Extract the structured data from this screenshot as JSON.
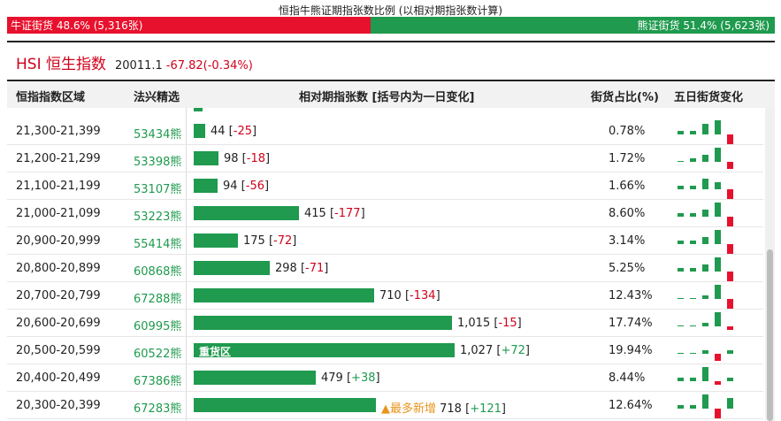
{
  "title": "恒指牛熊证期指张数比例 (以相对期指张数计算)",
  "ratio": {
    "bull_label": "牛证街货 48.6% (5,316张)",
    "bear_label": "熊证街货 51.4% (5,623张)",
    "bull_percent": 48.6,
    "bull_color": "#e8112d",
    "bear_color": "#1f9a4e"
  },
  "index": {
    "name": "HSI 恒生指数",
    "value": "20011.1",
    "change": "-67.82(-0.34%)"
  },
  "columns": {
    "range": "恒指指数区域",
    "code": "法兴精选",
    "contracts": "相对期指张数 [括号内为一日变化]",
    "share": "街货占比(%)",
    "five_day": "五日街货变化"
  },
  "bar_scale_max": 1027,
  "rows": [
    {
      "range": "21,300-21,399",
      "code": "53434熊",
      "count": "44",
      "count_value": 44,
      "change": "-25",
      "share": "0.78%",
      "spark": [
        1,
        1,
        3,
        4,
        -4
      ]
    },
    {
      "range": "21,200-21,299",
      "code": "53398熊",
      "count": "98",
      "count_value": 98,
      "change": "-18",
      "share": "1.72%",
      "spark": [
        0,
        1,
        2,
        4,
        -2
      ]
    },
    {
      "range": "21,100-21,199",
      "code": "53107熊",
      "count": "94",
      "count_value": 94,
      "change": "-56",
      "share": "1.66%",
      "spark": [
        1,
        1,
        3,
        2,
        -4
      ]
    },
    {
      "range": "21,000-21,099",
      "code": "53223熊",
      "count": "415",
      "count_value": 415,
      "change": "-177",
      "share": "8.60%",
      "spark": [
        1,
        1,
        2,
        4,
        -5
      ]
    },
    {
      "range": "20,900-20,999",
      "code": "55414熊",
      "count": "175",
      "count_value": 175,
      "change": "-72",
      "share": "3.14%",
      "spark": [
        1,
        1,
        2,
        4,
        -4
      ]
    },
    {
      "range": "20,800-20,899",
      "code": "60868熊",
      "count": "298",
      "count_value": 298,
      "change": "-71",
      "share": "5.25%",
      "spark": [
        1,
        1,
        2,
        4,
        -4
      ]
    },
    {
      "range": "20,700-20,799",
      "code": "67288熊",
      "count": "710",
      "count_value": 710,
      "change": "-134",
      "share": "12.43%",
      "spark": [
        0,
        0,
        1,
        4,
        -4
      ]
    },
    {
      "range": "20,600-20,699",
      "code": "60995熊",
      "count": "1,015",
      "count_value": 1015,
      "change": "-15",
      "share": "17.74%",
      "spark": [
        0,
        0,
        1,
        4,
        -1
      ]
    },
    {
      "range": "20,500-20,599",
      "code": "60522熊",
      "count": "1,027",
      "count_value": 1027,
      "change": "+72",
      "share": "19.94%",
      "label": "重货区",
      "spark": [
        0,
        0,
        1,
        -2,
        1
      ]
    },
    {
      "range": "20,400-20,499",
      "code": "67386熊",
      "count": "479",
      "count_value": 479,
      "change": "+38",
      "share": "8.44%",
      "spark": [
        1,
        1,
        4,
        -1,
        1
      ]
    },
    {
      "range": "20,300-20,399",
      "code": "67283熊",
      "count": "718",
      "count_value": 718,
      "change": "+121",
      "share": "12.64%",
      "tag": "▲最多新增",
      "spark": [
        1,
        1,
        4,
        -4,
        3
      ]
    }
  ]
}
